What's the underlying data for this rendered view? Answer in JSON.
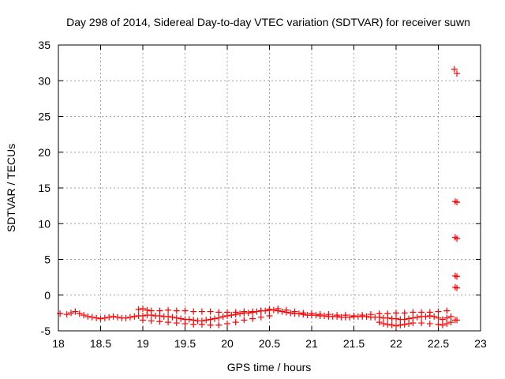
{
  "chart_data": {
    "type": "scatter",
    "title": "Day 298 of 2014, Sidereal Day-to-day VTEC variation (SDTVAR) for receiver suwn",
    "xlabel": "GPS time / hours",
    "ylabel": "SDTVAR / TECUs",
    "xlim": [
      18,
      23
    ],
    "ylim": [
      -5,
      35
    ],
    "xticks": [
      18,
      18.5,
      19,
      19.5,
      20,
      20.5,
      21,
      21.5,
      22,
      22.5,
      23
    ],
    "xtick_labels": [
      "18",
      "18.5",
      "19",
      "19.5",
      "20",
      "20.5",
      "21",
      "21.5",
      "22",
      "22.5",
      "23"
    ],
    "yticks": [
      -5,
      0,
      5,
      10,
      15,
      20,
      25,
      30,
      35
    ],
    "ytick_labels": [
      "-5",
      "0",
      "5",
      "10",
      "15",
      "20",
      "25",
      "30",
      "35"
    ],
    "grid": true,
    "marker": "+",
    "color": "#ff0000",
    "series": [
      {
        "name": "band-main",
        "x": [
          18.02,
          18.1,
          18.15,
          18.2,
          18.25,
          18.3,
          18.35,
          18.4,
          18.45,
          18.5,
          18.55,
          18.6,
          18.65,
          18.7,
          18.75,
          18.8,
          18.85,
          18.9,
          18.95,
          19.0,
          19.05,
          19.1,
          19.15,
          19.2,
          19.25,
          19.3,
          19.35,
          19.4,
          19.45,
          19.5,
          19.55,
          19.6,
          19.65,
          19.7,
          19.75,
          19.8,
          19.85,
          19.9,
          19.95,
          20.0,
          20.05,
          20.1,
          20.15,
          20.2,
          20.25,
          20.3,
          20.35,
          20.4,
          20.45,
          20.5,
          20.55,
          20.6,
          20.65,
          20.7,
          20.75,
          20.8,
          20.85,
          20.9,
          20.95,
          21.0,
          21.05,
          21.1,
          21.15,
          21.2,
          21.25,
          21.3,
          21.35,
          21.4,
          21.45,
          21.5,
          21.55,
          21.6,
          21.65,
          21.7,
          21.75,
          21.8,
          21.85,
          21.9,
          21.95,
          22.0,
          22.05,
          22.1,
          22.15,
          22.2,
          22.25,
          22.3,
          22.35,
          22.4,
          22.45,
          22.5,
          22.55,
          22.6,
          22.65
        ],
        "y": [
          -2.6,
          -2.7,
          -2.5,
          -2.3,
          -2.6,
          -2.8,
          -3.0,
          -3.1,
          -3.2,
          -3.3,
          -3.2,
          -3.1,
          -3.0,
          -3.1,
          -3.2,
          -3.2,
          -3.1,
          -3.0,
          -2.9,
          -2.9,
          -2.8,
          -2.8,
          -2.9,
          -2.9,
          -3.0,
          -3.0,
          -3.1,
          -3.2,
          -3.3,
          -3.4,
          -3.4,
          -3.5,
          -3.6,
          -3.6,
          -3.5,
          -3.4,
          -3.3,
          -3.2,
          -3.0,
          -2.9,
          -2.8,
          -2.7,
          -2.6,
          -2.5,
          -2.5,
          -2.4,
          -2.3,
          -2.2,
          -2.2,
          -2.1,
          -2.1,
          -2.2,
          -2.3,
          -2.4,
          -2.5,
          -2.6,
          -2.6,
          -2.7,
          -2.8,
          -2.8,
          -2.8,
          -2.9,
          -2.9,
          -3.0,
          -3.0,
          -3.0,
          -3.1,
          -3.1,
          -3.1,
          -3.0,
          -3.0,
          -3.0,
          -3.0,
          -3.1,
          -3.1,
          -3.1,
          -3.2,
          -3.2,
          -3.3,
          -3.3,
          -3.4,
          -3.4,
          -3.3,
          -3.2,
          -3.1,
          -3.0,
          -3.0,
          -2.9,
          -3.0,
          -3.2,
          -3.4,
          -3.2,
          -3.0
        ]
      },
      {
        "name": "band-upper",
        "x": [
          18.95,
          19.0,
          19.05,
          19.1,
          19.2,
          19.3,
          19.4,
          19.5,
          19.6,
          19.7,
          19.8,
          19.9,
          20.0,
          20.1,
          20.2,
          20.3,
          20.4,
          20.5,
          20.6,
          20.7,
          20.8,
          20.9,
          21.0,
          21.1,
          21.2,
          21.3,
          21.4,
          21.5,
          21.6,
          21.7,
          21.8,
          21.9,
          22.0,
          22.1,
          22.2,
          22.3,
          22.4,
          22.5,
          22.6
        ],
        "y": [
          -2.0,
          -1.9,
          -2.1,
          -2.2,
          -2.2,
          -2.1,
          -2.2,
          -2.2,
          -2.3,
          -2.3,
          -2.3,
          -2.4,
          -2.4,
          -2.4,
          -2.3,
          -2.3,
          -2.2,
          -2.0,
          -1.9,
          -2.1,
          -2.3,
          -2.5,
          -2.6,
          -2.7,
          -2.7,
          -2.8,
          -2.8,
          -2.9,
          -2.8,
          -2.7,
          -2.6,
          -2.6,
          -2.5,
          -2.5,
          -2.4,
          -2.4,
          -2.4,
          -2.3,
          -2.2
        ]
      },
      {
        "name": "band-lower",
        "x": [
          19.0,
          19.1,
          19.2,
          19.3,
          19.4,
          19.5,
          19.6,
          19.7,
          19.8,
          19.9,
          20.0,
          20.1,
          20.2,
          20.3,
          20.4,
          20.5,
          21.8,
          21.85,
          21.9,
          21.95,
          22.0,
          22.05,
          22.1,
          22.15,
          22.2,
          22.3,
          22.4,
          22.5,
          22.55,
          22.6,
          22.65
        ],
        "y": [
          -3.5,
          -3.6,
          -3.7,
          -3.8,
          -3.9,
          -4.0,
          -4.1,
          -4.1,
          -4.2,
          -4.2,
          -4.0,
          -3.8,
          -3.5,
          -3.3,
          -3.1,
          -2.9,
          -3.8,
          -4.0,
          -4.1,
          -4.2,
          -4.3,
          -4.2,
          -4.1,
          -4.0,
          -3.9,
          -3.9,
          -4.0,
          -4.1,
          -4.2,
          -4.0,
          -3.8
        ]
      },
      {
        "name": "outliers",
        "x": [
          22.69,
          22.72,
          22.7,
          22.72,
          22.7,
          22.72,
          22.7,
          22.72,
          22.7,
          22.72,
          22.7,
          22.72
        ],
        "y": [
          31.6,
          31.0,
          13.1,
          13.0,
          8.1,
          7.9,
          2.7,
          2.6,
          1.1,
          1.0,
          -3.5,
          -3.5
        ]
      }
    ]
  }
}
